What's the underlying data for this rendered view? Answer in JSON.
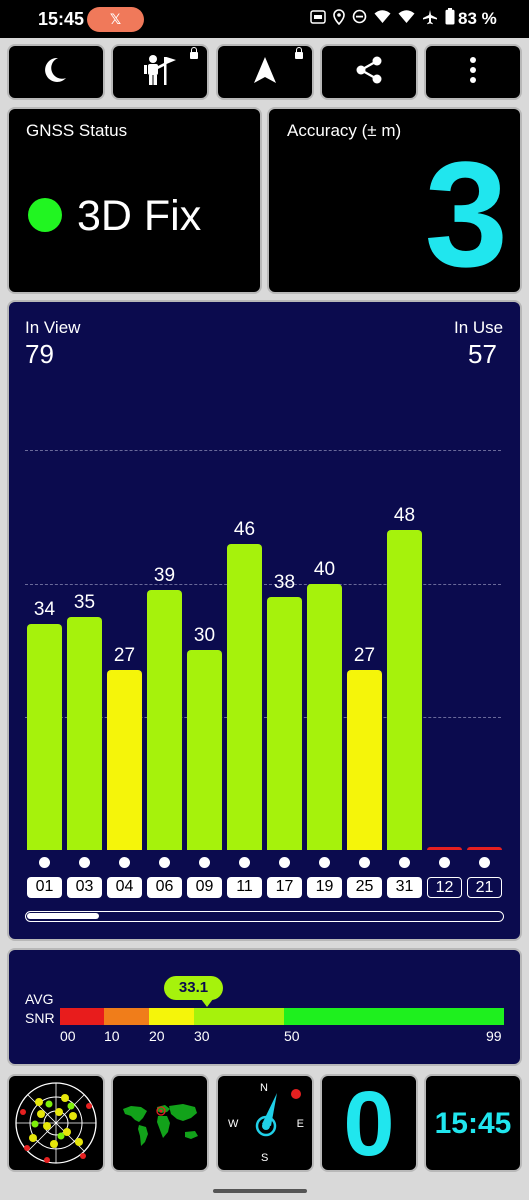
{
  "status_bar": {
    "time": "15:45",
    "pill_glyph": "𝕏",
    "battery": "83 %",
    "icons": [
      "hd-icon",
      "location-icon",
      "dnd-icon",
      "wifi-icon",
      "wifi-icon",
      "airplane-icon",
      "battery-icon"
    ]
  },
  "toolbar": {
    "buttons": [
      {
        "name": "night-mode-button",
        "icon": "moon-icon"
      },
      {
        "name": "pro-features-button",
        "icon": "explorer-icon",
        "locked": true
      },
      {
        "name": "navigation-button",
        "icon": "arrow-icon",
        "locked": true
      },
      {
        "name": "share-button",
        "icon": "share-icon"
      },
      {
        "name": "menu-button",
        "icon": "more-vert-icon"
      }
    ]
  },
  "gnss": {
    "label": "GNSS Status",
    "fix": "3D Fix",
    "fix_color": "#21f521"
  },
  "accuracy": {
    "label": "Accuracy (± m)",
    "value": "3",
    "color": "#20e6ee"
  },
  "satellites": {
    "in_view_label": "In View",
    "in_view": "79",
    "in_use_label": "In Use",
    "in_use": "57"
  },
  "chart_data": {
    "type": "bar",
    "categories": [
      "01",
      "03",
      "04",
      "06",
      "09",
      "11",
      "17",
      "19",
      "25",
      "31",
      "12",
      "21"
    ],
    "values": [
      34,
      35,
      27,
      39,
      30,
      46,
      38,
      40,
      27,
      48,
      0,
      0
    ],
    "value_labels": [
      "34",
      "35",
      "27",
      "39",
      "30",
      "46",
      "38",
      "40",
      "27",
      "48",
      "",
      ""
    ],
    "in_use": [
      true,
      true,
      true,
      true,
      true,
      true,
      true,
      true,
      true,
      true,
      false,
      false
    ],
    "colors": [
      "#a6f20c",
      "#a6f20c",
      "#f5f50a",
      "#a6f20c",
      "#a6f20c",
      "#a6f20c",
      "#a6f20c",
      "#a6f20c",
      "#f5f50a",
      "#a6f20c",
      "#e62020",
      "#e62020"
    ],
    "ylim": [
      0,
      60
    ],
    "gridlines": [
      20,
      40,
      60
    ]
  },
  "snr": {
    "avg_label": "AVG",
    "snr_label": "SNR",
    "value": "33.1",
    "value_number": 33.1,
    "ticks": [
      "00",
      "10",
      "20",
      "30",
      "50",
      "99"
    ],
    "segment_colors": [
      "#e81c1c",
      "#f07d1a",
      "#f5f50a",
      "#a6f20c",
      "#1ef01e"
    ]
  },
  "bottom_tiles": {
    "radar": "radar-view-tile",
    "map": "world-map-tile",
    "compass": {
      "n": "N",
      "e": "E",
      "s": "S",
      "w": "W"
    },
    "count": "0",
    "clock": "15:45"
  }
}
